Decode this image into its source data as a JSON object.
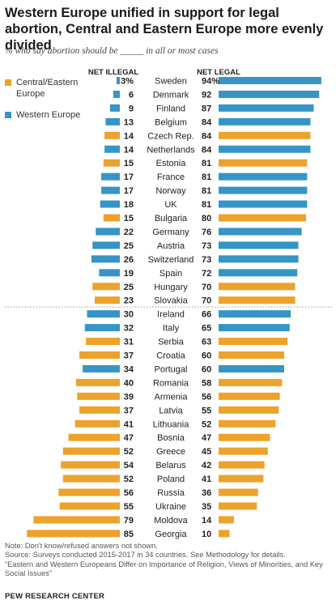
{
  "title": "Western Europe unified in support for legal abortion, Central and Eastern Europe more evenly divided",
  "subtitle": "% who say abortion should be _____ in all or most cases",
  "colors": {
    "central_eastern": "#EDA22C",
    "western": "#3695C5"
  },
  "notes": [
    "Note: Don't know/refused answers not shown.",
    "Source: Surveys conducted 2015-2017 in 34 countries. See Methodology for details.",
    "“Eastern and Western Europeans Differ on Importance of Religion, Views of Minorities, and Key Social Issues”"
  ],
  "brand": "PEW RESEARCH CENTER",
  "chart_data": {
    "type": "bar",
    "orientation": "horizontal",
    "layout": "diverging",
    "legend": [
      {
        "name": "Central/Eastern Europe",
        "key": "central_eastern"
      },
      {
        "name": "Western Europe",
        "key": "western"
      }
    ],
    "columns": {
      "illegal": "NET ILLEGAL",
      "legal": "NET LEGAL"
    },
    "divider_after_index": 17,
    "rows": [
      {
        "country": "Sweden",
        "illegal": "3%",
        "legal": "94%",
        "illegal_value": 3,
        "legal_value": 94,
        "region": "western"
      },
      {
        "country": "Denmark",
        "illegal": "6",
        "legal": "92",
        "illegal_value": 6,
        "legal_value": 92,
        "region": "western"
      },
      {
        "country": "Finland",
        "illegal": "9",
        "legal": "87",
        "illegal_value": 9,
        "legal_value": 87,
        "region": "western"
      },
      {
        "country": "Belgium",
        "illegal": "13",
        "legal": "84",
        "illegal_value": 13,
        "legal_value": 84,
        "region": "western"
      },
      {
        "country": "Czech Rep.",
        "illegal": "14",
        "legal": "84",
        "illegal_value": 14,
        "legal_value": 84,
        "region": "central_eastern"
      },
      {
        "country": "Netherlands",
        "illegal": "14",
        "legal": "84",
        "illegal_value": 14,
        "legal_value": 84,
        "region": "western"
      },
      {
        "country": "Estonia",
        "illegal": "15",
        "legal": "81",
        "illegal_value": 15,
        "legal_value": 81,
        "region": "central_eastern"
      },
      {
        "country": "France",
        "illegal": "17",
        "legal": "81",
        "illegal_value": 17,
        "legal_value": 81,
        "region": "western"
      },
      {
        "country": "Norway",
        "illegal": "17",
        "legal": "81",
        "illegal_value": 17,
        "legal_value": 81,
        "region": "western"
      },
      {
        "country": "UK",
        "illegal": "18",
        "legal": "81",
        "illegal_value": 18,
        "legal_value": 81,
        "region": "western"
      },
      {
        "country": "Bulgaria",
        "illegal": "15",
        "legal": "80",
        "illegal_value": 15,
        "legal_value": 80,
        "region": "central_eastern"
      },
      {
        "country": "Germany",
        "illegal": "22",
        "legal": "76",
        "illegal_value": 22,
        "legal_value": 76,
        "region": "western"
      },
      {
        "country": "Austria",
        "illegal": "25",
        "legal": "73",
        "illegal_value": 25,
        "legal_value": 73,
        "region": "western"
      },
      {
        "country": "Switzerland",
        "illegal": "26",
        "legal": "73",
        "illegal_value": 26,
        "legal_value": 73,
        "region": "western"
      },
      {
        "country": "Spain",
        "illegal": "19",
        "legal": "72",
        "illegal_value": 19,
        "legal_value": 72,
        "region": "western"
      },
      {
        "country": "Hungary",
        "illegal": "25",
        "legal": "70",
        "illegal_value": 25,
        "legal_value": 70,
        "region": "central_eastern"
      },
      {
        "country": "Slovakia",
        "illegal": "23",
        "legal": "70",
        "illegal_value": 23,
        "legal_value": 70,
        "region": "central_eastern"
      },
      {
        "country": "Ireland",
        "illegal": "30",
        "legal": "66",
        "illegal_value": 30,
        "legal_value": 66,
        "region": "western"
      },
      {
        "country": "Italy",
        "illegal": "32",
        "legal": "65",
        "illegal_value": 32,
        "legal_value": 65,
        "region": "western"
      },
      {
        "country": "Serbia",
        "illegal": "31",
        "legal": "63",
        "illegal_value": 31,
        "legal_value": 63,
        "region": "central_eastern"
      },
      {
        "country": "Croatia",
        "illegal": "37",
        "legal": "60",
        "illegal_value": 37,
        "legal_value": 60,
        "region": "central_eastern"
      },
      {
        "country": "Portugal",
        "illegal": "34",
        "legal": "60",
        "illegal_value": 34,
        "legal_value": 60,
        "region": "western"
      },
      {
        "country": "Romania",
        "illegal": "40",
        "legal": "58",
        "illegal_value": 40,
        "legal_value": 58,
        "region": "central_eastern"
      },
      {
        "country": "Armenia",
        "illegal": "39",
        "legal": "56",
        "illegal_value": 39,
        "legal_value": 56,
        "region": "central_eastern"
      },
      {
        "country": "Latvia",
        "illegal": "37",
        "legal": "55",
        "illegal_value": 37,
        "legal_value": 55,
        "region": "central_eastern"
      },
      {
        "country": "Lithuania",
        "illegal": "41",
        "legal": "52",
        "illegal_value": 41,
        "legal_value": 52,
        "region": "central_eastern"
      },
      {
        "country": "Bosnia",
        "illegal": "47",
        "legal": "47",
        "illegal_value": 47,
        "legal_value": 47,
        "region": "central_eastern"
      },
      {
        "country": "Greece",
        "illegal": "52",
        "legal": "45",
        "illegal_value": 52,
        "legal_value": 45,
        "region": "central_eastern"
      },
      {
        "country": "Belarus",
        "illegal": "54",
        "legal": "42",
        "illegal_value": 54,
        "legal_value": 42,
        "region": "central_eastern"
      },
      {
        "country": "Poland",
        "illegal": "52",
        "legal": "41",
        "illegal_value": 52,
        "legal_value": 41,
        "region": "central_eastern"
      },
      {
        "country": "Russia",
        "illegal": "56",
        "legal": "36",
        "illegal_value": 56,
        "legal_value": 36,
        "region": "central_eastern"
      },
      {
        "country": "Ukraine",
        "illegal": "55",
        "legal": "35",
        "illegal_value": 55,
        "legal_value": 35,
        "region": "central_eastern"
      },
      {
        "country": "Moldova",
        "illegal": "79",
        "legal": "14",
        "illegal_value": 79,
        "legal_value": 14,
        "region": "central_eastern"
      },
      {
        "country": "Georgia",
        "illegal": "85",
        "legal": "10",
        "illegal_value": 85,
        "legal_value": 10,
        "region": "central_eastern"
      }
    ]
  }
}
